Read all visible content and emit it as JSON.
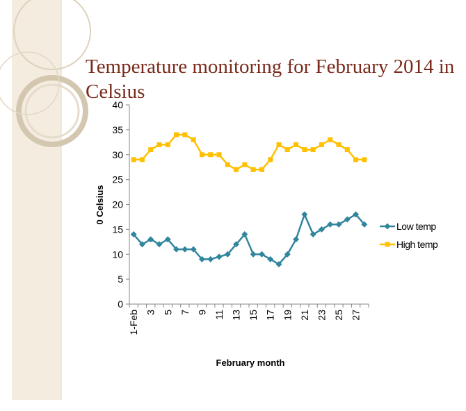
{
  "chart_data": {
    "type": "line",
    "title": "Temperature monitoring  for February 2014 in Celsius",
    "x_label": "February month",
    "y_label": "0 Celsius",
    "categories": [
      "1-Feb",
      null,
      "3",
      null,
      "5",
      null,
      "7",
      null,
      "9",
      null,
      "11",
      null,
      "13",
      null,
      "15",
      null,
      "17",
      null,
      "19",
      null,
      "21",
      null,
      "23",
      null,
      "25",
      null,
      "27",
      null
    ],
    "series": [
      {
        "name": "Low temp",
        "color": "#31859c",
        "marker": "diamond",
        "values": [
          14,
          12,
          13,
          12,
          13,
          11,
          11,
          11,
          9,
          9,
          9.5,
          10,
          12,
          14,
          10,
          10,
          9,
          8,
          10,
          13,
          18,
          14,
          15,
          16,
          16,
          17,
          18,
          16
        ]
      },
      {
        "name": "High temp",
        "color": "#ffc000",
        "marker": "square",
        "values": [
          29,
          29,
          31,
          32,
          32,
          34,
          34,
          33,
          30,
          30,
          30,
          28,
          27,
          28,
          27,
          27,
          29,
          32,
          31,
          32,
          31,
          31,
          32,
          33,
          32,
          31,
          29,
          29
        ]
      }
    ],
    "ylim": [
      0,
      40
    ],
    "yticks": [
      0,
      5,
      10,
      15,
      20,
      25,
      30,
      35,
      40
    ],
    "grid": false,
    "legend": "right"
  }
}
